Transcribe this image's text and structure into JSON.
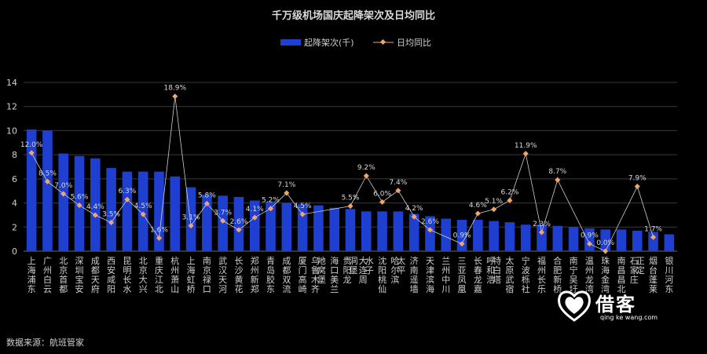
{
  "source": "数据来源：航班管家",
  "logo": {
    "text": "借客",
    "sub": "qing ke wang.com"
  },
  "chart_data": {
    "type": "bar+line",
    "title": "千万级机场国庆起降架次及日均同比",
    "legend": {
      "placement": "top-center",
      "bar_name": "起降架次(千)",
      "line_name": "日均同比"
    },
    "ylim": [
      0,
      14
    ],
    "yticks": [
      0,
      2,
      4,
      6,
      8,
      10,
      12,
      14
    ],
    "line_ylim_pct": [
      0,
      20.6
    ],
    "bar_color": "#1f3fd0",
    "line_color": "#f4a46a",
    "categories": [
      "上海浦东",
      "广州白云",
      "北京首都",
      "深圳宝安",
      "成都天府",
      "西安咸阳",
      "昆明长水",
      "北京大兴",
      "重庆江北",
      "杭州萧山",
      "上海虹桥",
      "南京禄口",
      "武汉天河",
      "长沙黄花",
      "郑州新郑",
      "青岛胶东",
      "成都双流",
      "厦门高崎",
      "乌鲁木齐地窝堡",
      "海口美兰",
      "贵阳龙洞堡",
      "大连周水子",
      "沈阳桃仙",
      "哈尔滨太平",
      "济南遥墙",
      "天津滨海",
      "兰州中川",
      "三亚凤凰",
      "长春龙嘉",
      "呼和浩特白塔",
      "太原武宿",
      "宁波栎社",
      "福州长乐",
      "合肥新桥",
      "南宁吴圩",
      "温州龙湾",
      "珠海金湾",
      "南昌昌北",
      "石家庄正定",
      "烟台蓬莱",
      "银川河东"
    ],
    "bars": [
      10.1,
      10.0,
      8.1,
      7.9,
      7.7,
      6.9,
      6.6,
      6.6,
      6.6,
      6.2,
      5.3,
      4.7,
      4.6,
      4.5,
      4.2,
      4.1,
      4.0,
      3.9,
      3.8,
      3.6,
      3.5,
      3.3,
      3.3,
      3.3,
      3.1,
      2.9,
      2.7,
      2.6,
      2.6,
      2.5,
      2.4,
      2.2,
      2.2,
      2.1,
      2.0,
      1.9,
      1.8,
      1.8,
      1.7,
      1.6,
      1.4
    ],
    "growth": [
      12.0,
      8.5,
      7.0,
      5.6,
      4.4,
      3.5,
      6.3,
      4.5,
      1.6,
      18.9,
      3.1,
      5.8,
      3.7,
      2.6,
      4.1,
      5.2,
      7.1,
      4.5,
      null,
      null,
      5.5,
      9.2,
      6.0,
      7.4,
      4.2,
      2.6,
      null,
      0.9,
      4.6,
      5.1,
      6.2,
      11.9,
      2.3,
      8.7,
      null,
      0.9,
      0.0,
      null,
      7.9,
      1.7,
      null
    ],
    "growth_labels": [
      "12.0%",
      "8.5%",
      "7.0%",
      "5.6%",
      "4.4%",
      "3.5%",
      "6.3%",
      "4.5%",
      "1.6%",
      "18.9%",
      "3.1%",
      "5.8%",
      "3.7%",
      "2.6%",
      "4.1%",
      "5.2%",
      "7.1%",
      "4.5%",
      "",
      "",
      "5.5%",
      "9.2%",
      "6.0%",
      "7.4%",
      "4.2%",
      "2.6%",
      "",
      "0.9%",
      "4.6%",
      "5.1%",
      "6.2%",
      "11.9%",
      "2.3%",
      "8.7%",
      "",
      "0.9%",
      "0.0%",
      "",
      "7.9%",
      "1.7%",
      ""
    ]
  }
}
